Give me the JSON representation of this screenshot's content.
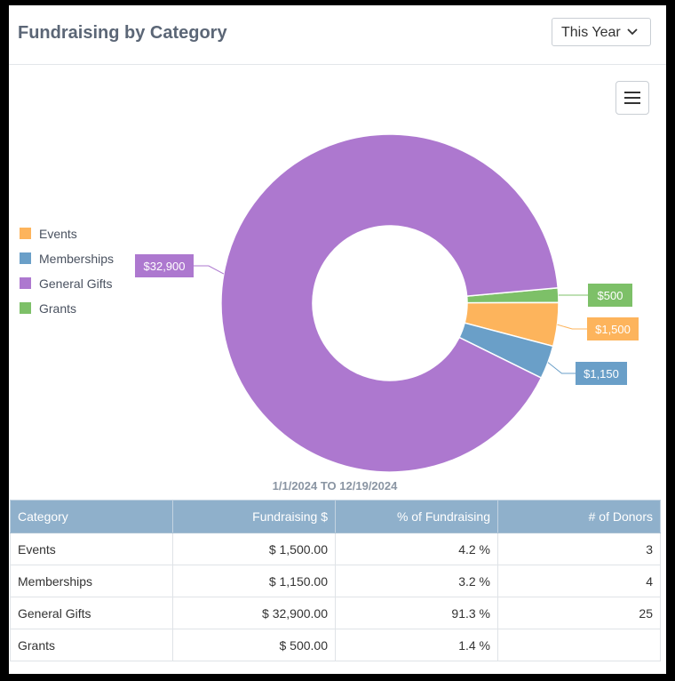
{
  "header": {
    "title": "Fundraising by Category",
    "range_select": {
      "value": "This Year"
    }
  },
  "menu": {
    "icon": "hamburger-icon"
  },
  "legend": [
    {
      "label": "Events",
      "color": "#fdb45c"
    },
    {
      "label": "Memberships",
      "color": "#6a9fc8"
    },
    {
      "label": "General Gifts",
      "color": "#ad78cf"
    },
    {
      "label": "Grants",
      "color": "#7dc068"
    }
  ],
  "chart_data": {
    "type": "pie",
    "categories": [
      "Events",
      "Memberships",
      "General Gifts",
      "Grants"
    ],
    "values": [
      1500,
      1150,
      32900,
      500
    ],
    "data_labels": [
      "$1,500",
      "$1,150",
      "$32,900",
      "$500"
    ],
    "colors": [
      "#fdb45c",
      "#6a9fc8",
      "#ad78cf",
      "#7dc068"
    ],
    "donut": true,
    "legend_position": "left"
  },
  "date_range": "1/1/2024 TO 12/19/2024",
  "table": {
    "headers": [
      "Category",
      "Fundraising $",
      "% of Fundraising",
      "# of Donors"
    ],
    "rows": [
      [
        "Events",
        "$ 1,500.00",
        "4.2 %",
        "3"
      ],
      [
        "Memberships",
        "$ 1,150.00",
        "3.2 %",
        "4"
      ],
      [
        "General Gifts",
        "$ 32,900.00",
        "91.3 %",
        "25"
      ],
      [
        "Grants",
        "$ 500.00",
        "1.4 %",
        ""
      ]
    ]
  }
}
